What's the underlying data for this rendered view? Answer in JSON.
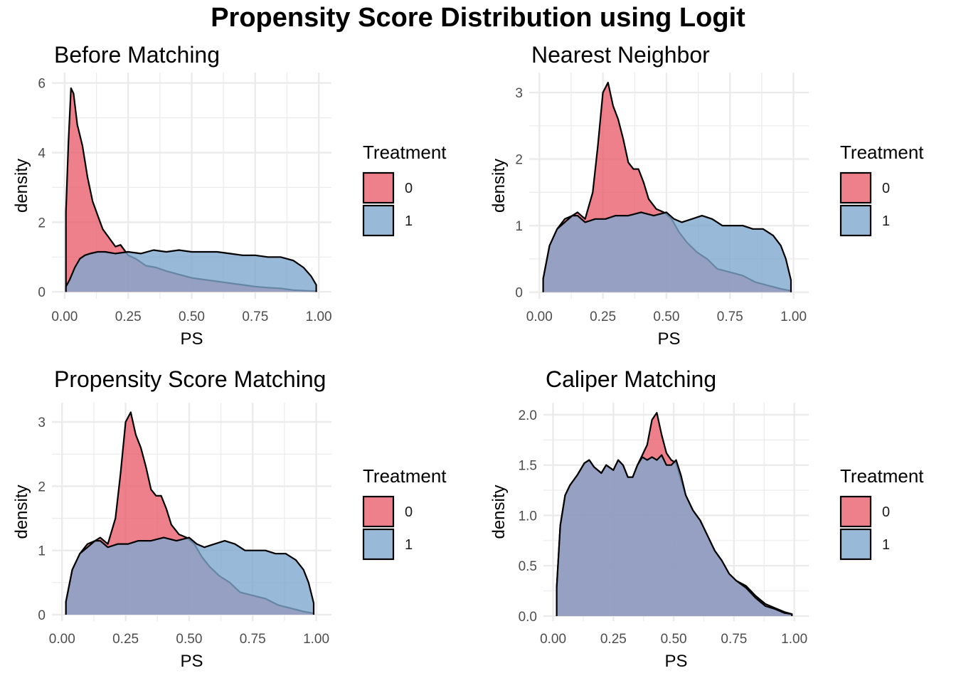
{
  "title": "Propensity Score Distribution using Logit",
  "colors": {
    "treatment_0": "#E8606D",
    "treatment_1": "#7FA7CF",
    "grid": "#ebebeb",
    "outline": "#000000"
  },
  "chart_data": [
    {
      "type": "area",
      "title": "Before Matching",
      "xlabel": "PS",
      "ylabel": "density",
      "xlim": [
        -0.05,
        1.05
      ],
      "ylim": [
        -0.2,
        6.3
      ],
      "xticks": [
        0,
        0.25,
        0.5,
        0.75,
        1
      ],
      "xtick_labels": [
        "0.00",
        "0.25",
        "0.50",
        "0.75",
        "1.00"
      ],
      "yticks": [
        0,
        2,
        4,
        6
      ],
      "ytick_labels": [
        "0",
        "2",
        "4",
        "6"
      ],
      "legend": {
        "title": "Treatment",
        "labels": [
          "0",
          "1"
        ],
        "position": "right"
      },
      "series": [
        {
          "name": "0",
          "x": [
            0.005,
            0.015,
            0.025,
            0.035,
            0.05,
            0.07,
            0.09,
            0.11,
            0.13,
            0.15,
            0.17,
            0.2,
            0.22,
            0.25,
            0.28,
            0.32,
            0.36,
            0.4,
            0.45,
            0.5,
            0.55,
            0.6,
            0.65,
            0.7,
            0.75,
            0.8,
            0.85,
            0.9,
            0.95,
            0.99
          ],
          "y": [
            2.3,
            4.3,
            5.85,
            5.7,
            4.8,
            4.2,
            3.3,
            2.6,
            2.2,
            1.8,
            1.6,
            1.3,
            1.35,
            1.05,
            0.95,
            0.75,
            0.7,
            0.6,
            0.5,
            0.4,
            0.35,
            0.3,
            0.25,
            0.2,
            0.15,
            0.12,
            0.1,
            0.05,
            0.03,
            0.02
          ]
        },
        {
          "name": "1",
          "x": [
            0.005,
            0.02,
            0.04,
            0.06,
            0.08,
            0.1,
            0.13,
            0.16,
            0.2,
            0.25,
            0.3,
            0.35,
            0.4,
            0.45,
            0.5,
            0.55,
            0.6,
            0.65,
            0.7,
            0.75,
            0.8,
            0.85,
            0.9,
            0.94,
            0.97,
            0.99
          ],
          "y": [
            0.15,
            0.35,
            0.7,
            0.95,
            1.05,
            1.1,
            1.15,
            1.15,
            1.1,
            1.15,
            1.1,
            1.2,
            1.15,
            1.2,
            1.15,
            1.15,
            1.15,
            1.1,
            1.05,
            1.05,
            1.0,
            1.0,
            0.9,
            0.7,
            0.45,
            0.2
          ]
        }
      ]
    },
    {
      "type": "area",
      "title": "Nearest Neighbor",
      "xlabel": "PS",
      "ylabel": "density",
      "xlim": [
        -0.04,
        1.06
      ],
      "ylim": [
        -0.1,
        3.3
      ],
      "xticks": [
        0,
        0.25,
        0.5,
        0.75,
        1
      ],
      "xtick_labels": [
        "0.00",
        "0.25",
        "0.50",
        "0.75",
        "1.00"
      ],
      "yticks": [
        0,
        1,
        2,
        3
      ],
      "ytick_labels": [
        "0",
        "1",
        "2",
        "3"
      ],
      "legend": {
        "title": "Treatment",
        "labels": [
          "0",
          "1"
        ],
        "position": "right"
      },
      "series": [
        {
          "name": "0",
          "x": [
            0.015,
            0.04,
            0.07,
            0.1,
            0.13,
            0.15,
            0.18,
            0.21,
            0.23,
            0.25,
            0.27,
            0.29,
            0.31,
            0.33,
            0.35,
            0.37,
            0.39,
            0.41,
            0.43,
            0.46,
            0.49,
            0.52,
            0.55,
            0.58,
            0.62,
            0.66,
            0.7,
            0.75,
            0.8,
            0.85,
            0.9,
            0.95,
            0.99
          ],
          "y": [
            0.2,
            0.7,
            0.95,
            1.1,
            1.15,
            1.2,
            1.1,
            1.5,
            2.2,
            3.0,
            3.15,
            2.8,
            2.6,
            2.3,
            1.95,
            1.85,
            1.85,
            1.65,
            1.4,
            1.25,
            1.2,
            1.1,
            0.9,
            0.75,
            0.6,
            0.5,
            0.35,
            0.3,
            0.25,
            0.15,
            0.1,
            0.05,
            0.02
          ]
        },
        {
          "name": "1",
          "x": [
            0.015,
            0.04,
            0.07,
            0.1,
            0.13,
            0.15,
            0.18,
            0.22,
            0.26,
            0.3,
            0.35,
            0.4,
            0.45,
            0.5,
            0.53,
            0.56,
            0.6,
            0.64,
            0.68,
            0.72,
            0.76,
            0.8,
            0.84,
            0.88,
            0.92,
            0.95,
            0.97,
            0.99
          ],
          "y": [
            0.2,
            0.7,
            0.95,
            1.05,
            1.15,
            1.15,
            1.05,
            1.1,
            1.1,
            1.15,
            1.15,
            1.2,
            1.15,
            1.2,
            1.1,
            1.05,
            1.1,
            1.15,
            1.1,
            1.0,
            1.0,
            1.0,
            0.95,
            0.95,
            0.85,
            0.7,
            0.5,
            0.18
          ]
        }
      ]
    },
    {
      "type": "area",
      "title": "Propensity Score Matching",
      "xlabel": "PS",
      "ylabel": "density",
      "xlim": [
        -0.04,
        1.06
      ],
      "ylim": [
        -0.1,
        3.3
      ],
      "xticks": [
        0,
        0.25,
        0.5,
        0.75,
        1
      ],
      "xtick_labels": [
        "0.00",
        "0.25",
        "0.50",
        "0.75",
        "1.00"
      ],
      "yticks": [
        0,
        1,
        2,
        3
      ],
      "ytick_labels": [
        "0",
        "1",
        "2",
        "3"
      ],
      "legend": {
        "title": "Treatment",
        "labels": [
          "0",
          "1"
        ],
        "position": "right"
      },
      "series": [
        {
          "name": "0",
          "x": [
            0.015,
            0.04,
            0.07,
            0.1,
            0.13,
            0.15,
            0.18,
            0.21,
            0.23,
            0.25,
            0.27,
            0.29,
            0.31,
            0.33,
            0.35,
            0.37,
            0.39,
            0.41,
            0.43,
            0.46,
            0.49,
            0.52,
            0.55,
            0.58,
            0.62,
            0.66,
            0.7,
            0.75,
            0.8,
            0.85,
            0.9,
            0.95,
            0.99
          ],
          "y": [
            0.2,
            0.7,
            0.95,
            1.1,
            1.15,
            1.2,
            1.1,
            1.5,
            2.2,
            3.0,
            3.15,
            2.8,
            2.6,
            2.3,
            1.95,
            1.85,
            1.85,
            1.65,
            1.4,
            1.25,
            1.2,
            1.1,
            0.9,
            0.75,
            0.6,
            0.5,
            0.35,
            0.3,
            0.25,
            0.15,
            0.1,
            0.05,
            0.02
          ]
        },
        {
          "name": "1",
          "x": [
            0.015,
            0.04,
            0.07,
            0.1,
            0.13,
            0.15,
            0.18,
            0.22,
            0.26,
            0.3,
            0.35,
            0.4,
            0.45,
            0.5,
            0.53,
            0.56,
            0.6,
            0.64,
            0.68,
            0.72,
            0.76,
            0.8,
            0.84,
            0.88,
            0.92,
            0.95,
            0.97,
            0.99
          ],
          "y": [
            0.2,
            0.7,
            0.95,
            1.05,
            1.15,
            1.15,
            1.05,
            1.1,
            1.1,
            1.15,
            1.15,
            1.2,
            1.15,
            1.2,
            1.1,
            1.05,
            1.1,
            1.15,
            1.1,
            1.0,
            1.0,
            1.0,
            0.95,
            0.95,
            0.85,
            0.7,
            0.5,
            0.18
          ]
        }
      ]
    },
    {
      "type": "area",
      "title": "Caliper Matching",
      "xlabel": "PS",
      "ylabel": "density",
      "xlim": [
        -0.04,
        1.06
      ],
      "ylim": [
        -0.05,
        2.12
      ],
      "xticks": [
        0,
        0.25,
        0.5,
        0.75,
        1
      ],
      "xtick_labels": [
        "0.00",
        "0.25",
        "0.50",
        "0.75",
        "1.00"
      ],
      "yticks": [
        0,
        0.5,
        1,
        1.5,
        2
      ],
      "ytick_labels": [
        "0.0",
        "0.5",
        "1.0",
        "1.5",
        "2.0"
      ],
      "legend": {
        "title": "Treatment",
        "labels": [
          "0",
          "1"
        ],
        "position": "right"
      },
      "series": [
        {
          "name": "0",
          "x": [
            0.015,
            0.03,
            0.05,
            0.07,
            0.1,
            0.13,
            0.15,
            0.17,
            0.2,
            0.22,
            0.25,
            0.27,
            0.29,
            0.31,
            0.33,
            0.35,
            0.37,
            0.39,
            0.41,
            0.43,
            0.45,
            0.47,
            0.49,
            0.51,
            0.53,
            0.55,
            0.58,
            0.61,
            0.64,
            0.67,
            0.7,
            0.73,
            0.76,
            0.8,
            0.84,
            0.88,
            0.92,
            0.96,
            0.99
          ],
          "y": [
            0.28,
            0.9,
            1.2,
            1.3,
            1.4,
            1.52,
            1.55,
            1.48,
            1.42,
            1.5,
            1.45,
            1.55,
            1.5,
            1.38,
            1.38,
            1.5,
            1.6,
            1.7,
            1.95,
            2.02,
            1.8,
            1.62,
            1.55,
            1.52,
            1.35,
            1.2,
            1.05,
            0.95,
            0.8,
            0.65,
            0.55,
            0.42,
            0.35,
            0.3,
            0.2,
            0.12,
            0.08,
            0.04,
            0.02
          ]
        },
        {
          "name": "1",
          "x": [
            0.015,
            0.03,
            0.05,
            0.07,
            0.1,
            0.13,
            0.15,
            0.17,
            0.2,
            0.22,
            0.25,
            0.27,
            0.29,
            0.31,
            0.33,
            0.35,
            0.37,
            0.39,
            0.41,
            0.43,
            0.45,
            0.47,
            0.49,
            0.51,
            0.53,
            0.55,
            0.58,
            0.61,
            0.64,
            0.67,
            0.7,
            0.73,
            0.76,
            0.8,
            0.84,
            0.88,
            0.92,
            0.96,
            0.99
          ],
          "y": [
            0.28,
            0.9,
            1.2,
            1.3,
            1.4,
            1.52,
            1.55,
            1.48,
            1.42,
            1.5,
            1.45,
            1.55,
            1.5,
            1.38,
            1.38,
            1.5,
            1.58,
            1.55,
            1.58,
            1.55,
            1.6,
            1.5,
            1.5,
            1.55,
            1.4,
            1.2,
            1.05,
            0.95,
            0.8,
            0.65,
            0.55,
            0.42,
            0.35,
            0.28,
            0.18,
            0.1,
            0.07,
            0.03,
            0.02
          ]
        }
      ]
    }
  ]
}
